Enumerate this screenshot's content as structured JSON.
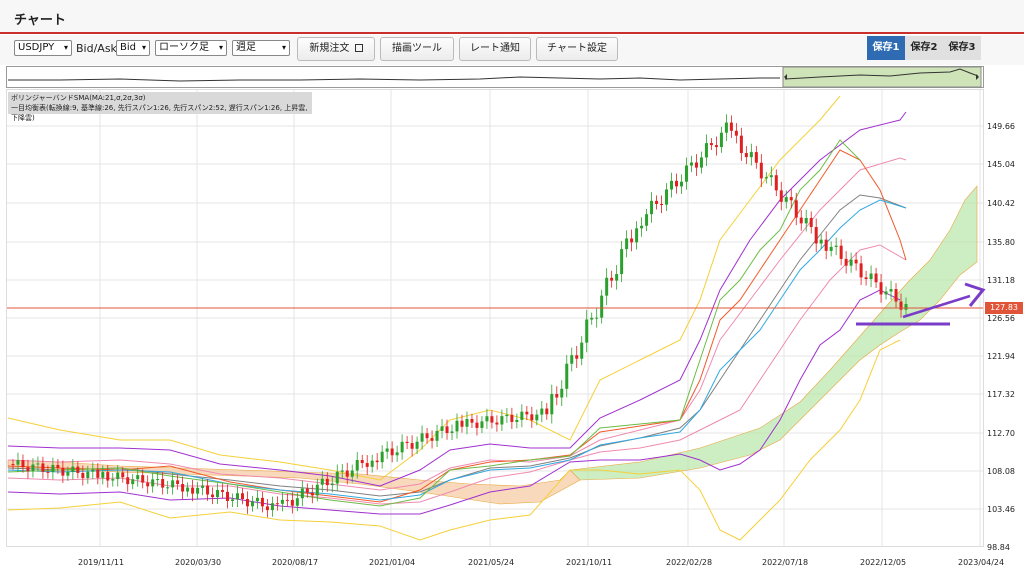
{
  "page": {
    "title": "チャート"
  },
  "toolbar": {
    "symbol": "USDJPY",
    "bid_ask_label": "Bid/Ask",
    "bid_ask": "Bid",
    "chart_type": "ローソク足",
    "period": "週足",
    "new_order_label": "新規注文",
    "drawing_tool_label": "描画ツール",
    "rate_alert_label": "レート通知",
    "chart_settings_label": "チャート設定"
  },
  "saves": [
    "保存1",
    "保存2",
    "保存3"
  ],
  "legend": {
    "line1": "ボリンジャーバンドSMA(MA:21,σ,2σ,3σ)",
    "line2": "一目均衡表(転換線:9, 基準線:26, 先行スパン1:26, 先行スパン2:52, 遅行スパン1:26, 上昇雲, 下降雲)"
  },
  "icons": {
    "new_order": "window-icon",
    "dropdown": "chevron-down-icon",
    "nav_left": "arrow-left-icon",
    "nav_right": "arrow-right-icon"
  },
  "colors": {
    "up": "#2ca02c",
    "down": "#e02020",
    "price_tag": "#e0553a",
    "arrow": "#7a3dc8",
    "active_save": "#2e6bb3"
  },
  "current_price": "127.83",
  "y_labels": [
    "149.66",
    "145.04",
    "140.42",
    "135.80",
    "131.18",
    "126.56",
    "121.94",
    "117.32",
    "112.70",
    "108.08",
    "103.46",
    "98.84"
  ],
  "x_labels": [
    "2019/11/11",
    "2020/03/30",
    "2020/08/17",
    "2021/01/04",
    "2021/05/24",
    "2021/10/11",
    "2022/02/28",
    "2022/07/18",
    "2022/12/05",
    "2023/04/24"
  ],
  "chart_data": {
    "type": "candlestick",
    "instrument": "USDJPY",
    "timeframe": "weekly",
    "ylim": [
      98.84,
      154.28
    ],
    "current_price": 127.83,
    "overlays": [
      "Bollinger Bands SMA 21 (1σ, 2σ, 3σ)",
      "Ichimoku Kinko Hyo"
    ],
    "close_trend": [
      {
        "date": "2019/11/11",
        "value": 108.8
      },
      {
        "date": "2020/03/30",
        "value": 107.5
      },
      {
        "date": "2020/08/17",
        "value": 106.0
      },
      {
        "date": "2021/01/04",
        "value": 103.5
      },
      {
        "date": "2021/05/24",
        "value": 109.2
      },
      {
        "date": "2021/10/11",
        "value": 113.5
      },
      {
        "date": "2022/02/28",
        "value": 115.0
      },
      {
        "date": "2022/07/18",
        "value": 138.0
      },
      {
        "date": "2022/10/17",
        "value": 149.5
      },
      {
        "date": "2022/12/05",
        "value": 136.5
      },
      {
        "date": "2023/01/16",
        "value": 127.83
      }
    ]
  }
}
